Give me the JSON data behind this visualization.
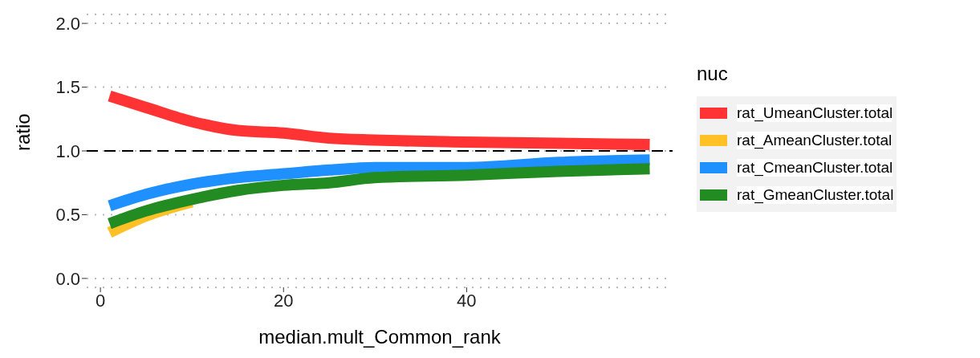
{
  "chart_data": {
    "type": "line",
    "xlabel": "median.mult_Common_rank",
    "ylabel": "ratio",
    "legend_title": "nuc",
    "legend": "right",
    "x": [
      1,
      5,
      10,
      15,
      20,
      25,
      30,
      40,
      50,
      60
    ],
    "series": [
      {
        "name": "rat_UmeanCluster.total",
        "color": "#ff3333",
        "values": [
          1.43,
          1.34,
          1.23,
          1.16,
          1.14,
          1.1,
          1.085,
          1.07,
          1.06,
          1.05
        ]
      },
      {
        "name": "rat_AmeanCluster.total",
        "color": "#ffc125",
        "values": [
          0.36,
          0.49,
          0.6,
          null,
          null,
          null,
          null,
          null,
          null,
          null
        ]
      },
      {
        "name": "rat_CmeanCluster.total",
        "color": "#1e90ff",
        "values": [
          0.57,
          0.66,
          0.74,
          0.79,
          0.82,
          0.85,
          0.87,
          0.87,
          0.91,
          0.93
        ]
      },
      {
        "name": "rat_GmeanCluster.total",
        "color": "#228b22",
        "values": [
          0.43,
          0.53,
          0.62,
          0.69,
          0.73,
          0.75,
          0.79,
          0.81,
          0.84,
          0.86
        ]
      }
    ],
    "xlim": [
      -1.5,
      62.5
    ],
    "xticks": [
      0,
      20,
      40
    ],
    "ylim": [
      -0.07,
      2.07
    ],
    "yticks": [
      {
        "value": 0,
        "label": "0.0"
      },
      {
        "value": 0.5,
        "label": "0.5"
      },
      {
        "value": 1,
        "label": "1.0"
      },
      {
        "value": 1.5,
        "label": "1.5"
      },
      {
        "value": 2,
        "label": "2.0"
      }
    ],
    "grid": "y",
    "marker": "none",
    "line_style": "solid",
    "ref_lines": [
      {
        "axis": "y",
        "value": 1,
        "label": null,
        "color": "#000000",
        "line_style": "dashed"
      }
    ]
  }
}
